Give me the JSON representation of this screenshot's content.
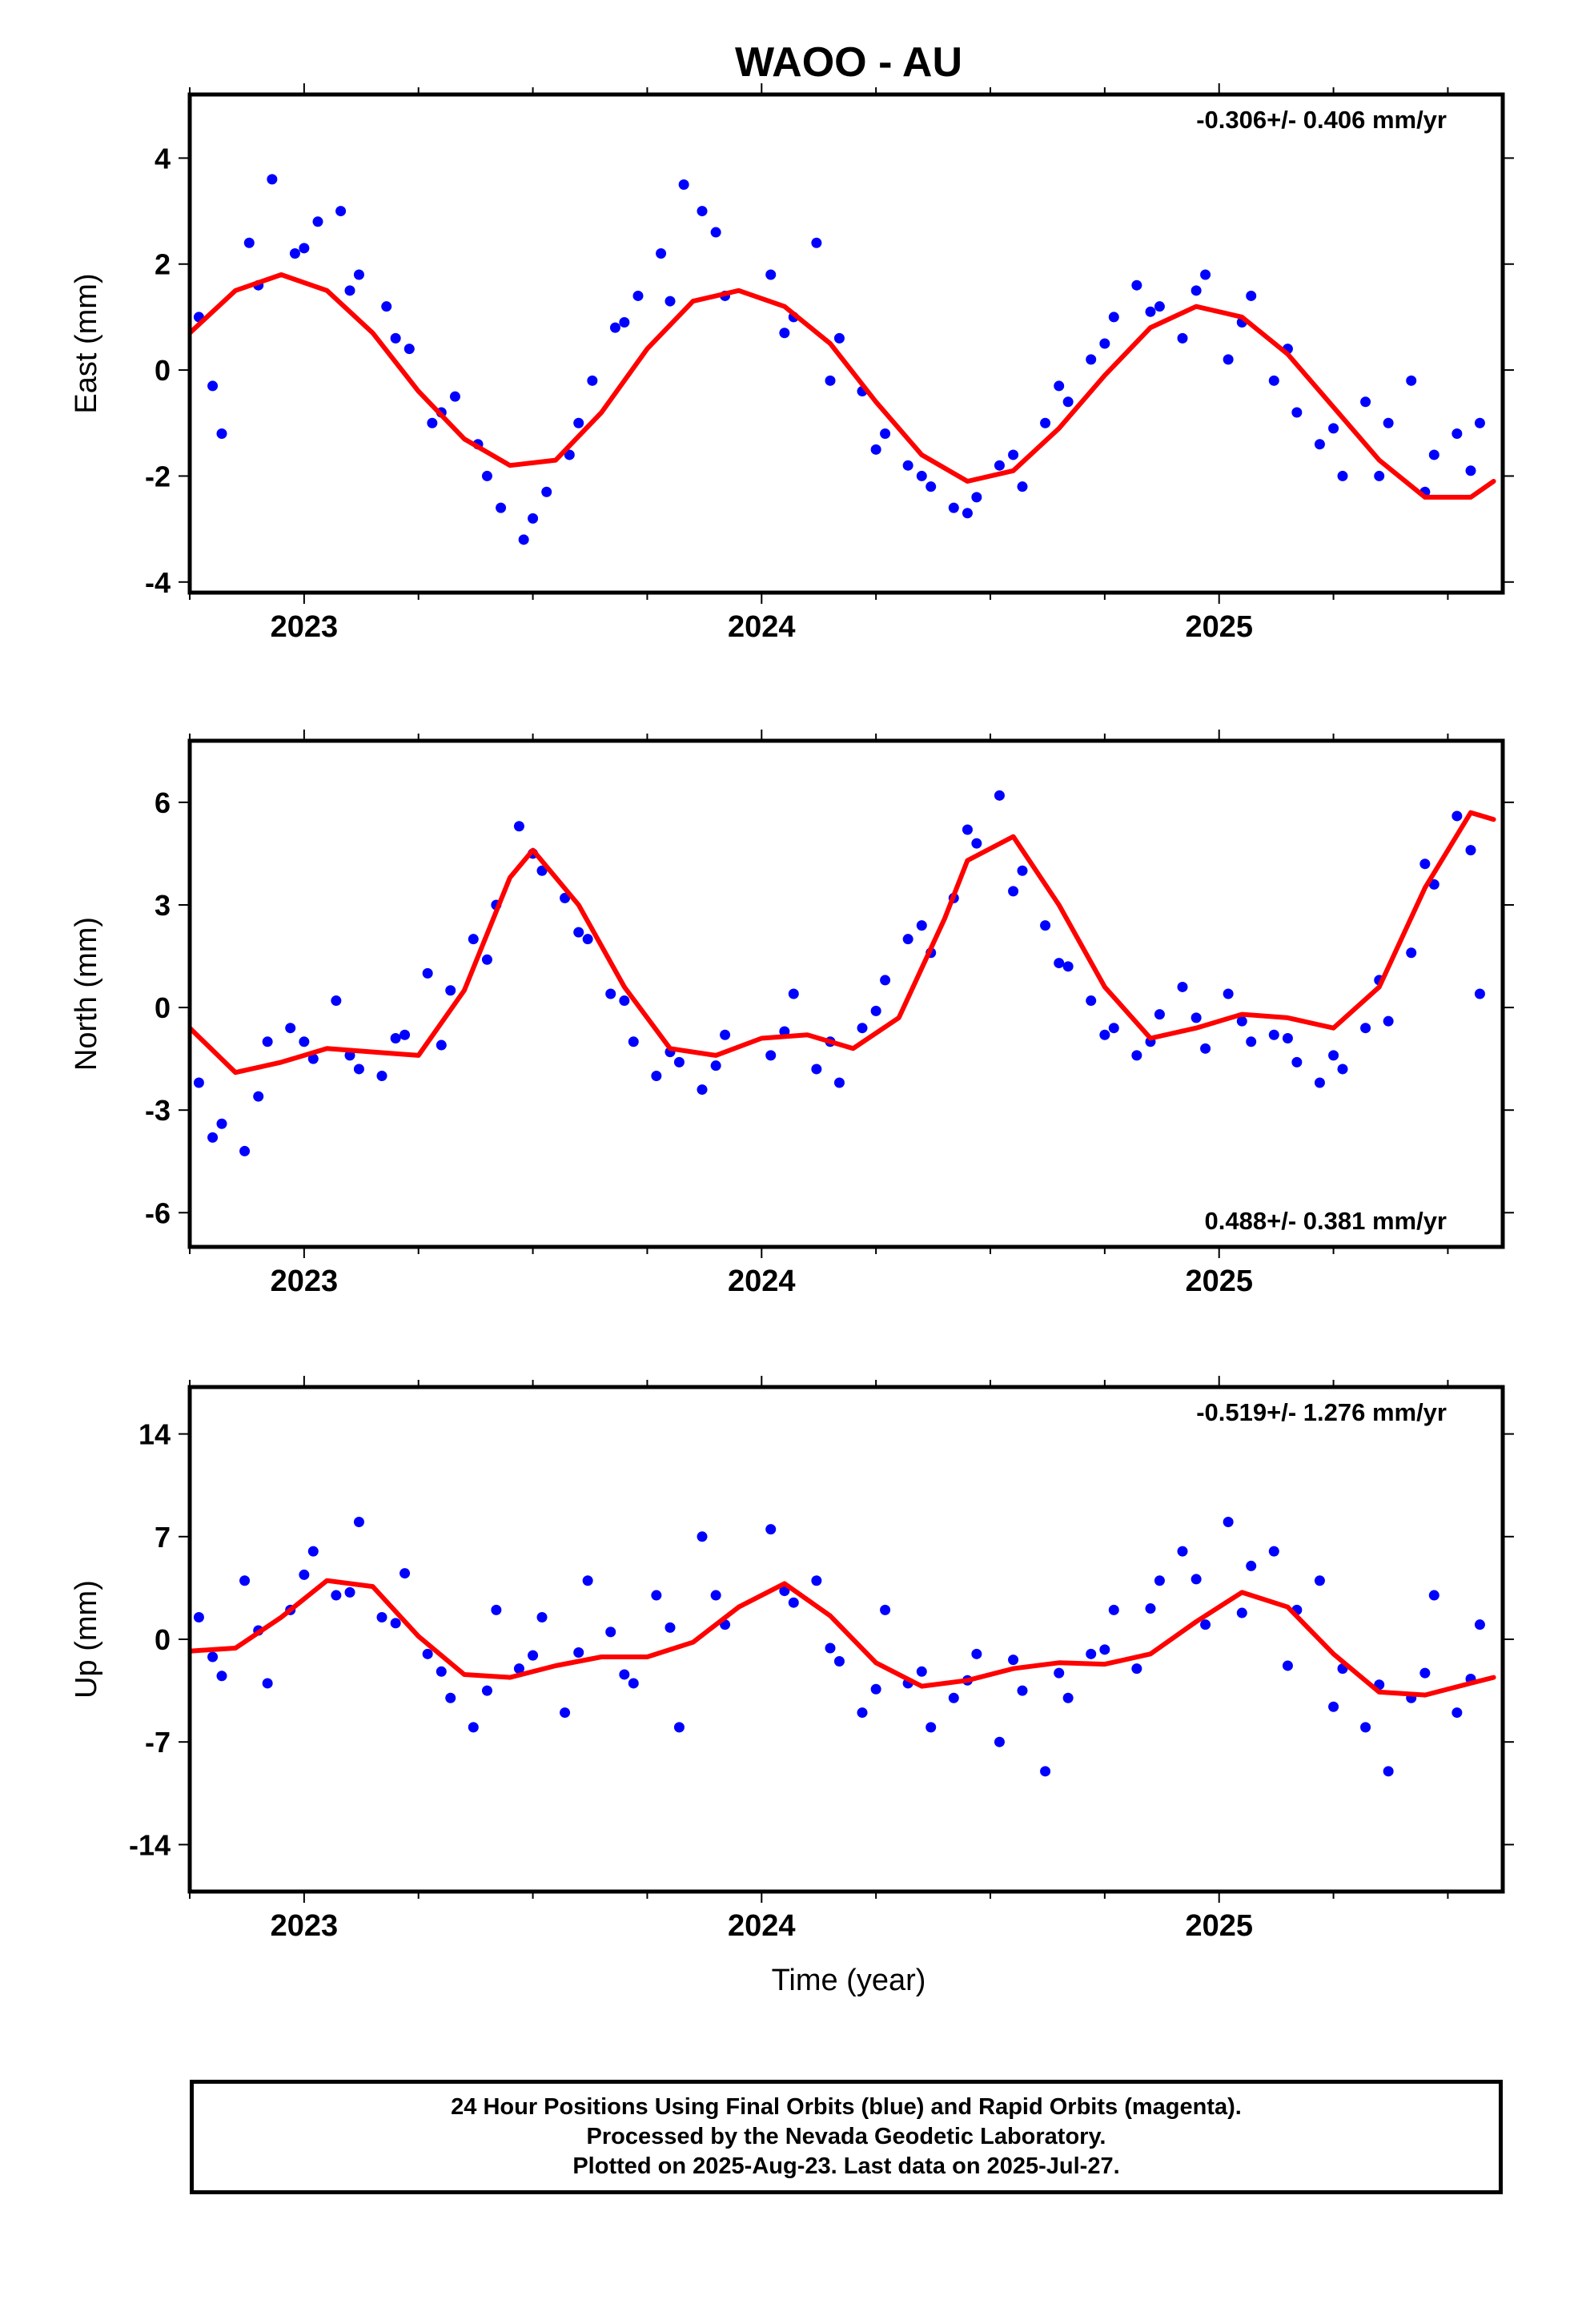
{
  "chart_data": {
    "type": "scatter",
    "title": "WAOO - AU",
    "xlabel": "Time (year)",
    "x_ticks": [
      "2023",
      "2024",
      "2025"
    ],
    "xlim": [
      2022.75,
      2025.62
    ],
    "colors": {
      "points": "#0000ff",
      "fit": "#ff0000",
      "frame": "#000000"
    },
    "panels": [
      {
        "ylabel": "East (mm)",
        "ylim": [
          -4.2,
          5.2
        ],
        "yticks": [
          "4",
          "2",
          "0",
          "-2",
          "-4"
        ],
        "ytick_values": [
          4,
          2,
          0,
          -2,
          -4
        ],
        "rate": "-0.306+/- 0.406 mm/yr",
        "rate_position": "top-right",
        "fit_curve": {
          "x": [
            2022.75,
            2022.85,
            2022.95,
            2023.05,
            2023.15,
            2023.25,
            2023.35,
            2023.45,
            2023.55,
            2023.65,
            2023.75,
            2023.85,
            2023.95,
            2024.05,
            2024.15,
            2024.25,
            2024.35,
            2024.45,
            2024.55,
            2024.65,
            2024.75,
            2024.85,
            2024.95,
            2025.05,
            2025.15,
            2025.25,
            2025.35,
            2025.45,
            2025.55,
            2025.6
          ],
          "y": [
            0.7,
            1.5,
            1.8,
            1.5,
            0.7,
            -0.4,
            -1.3,
            -1.8,
            -1.7,
            -0.8,
            0.4,
            1.3,
            1.5,
            1.2,
            0.5,
            -0.6,
            -1.6,
            -2.1,
            -1.9,
            -1.1,
            -0.1,
            0.8,
            1.2,
            1.0,
            0.3,
            -0.7,
            -1.7,
            -2.4,
            -2.4,
            -2.1
          ]
        },
        "points": {
          "x": [
            2022.77,
            2022.82,
            2022.88,
            2022.93,
            2022.98,
            2023.03,
            2023.08,
            2023.12,
            2023.18,
            2023.23,
            2023.28,
            2023.33,
            2023.38,
            2023.43,
            2023.48,
            2023.53,
            2023.58,
            2023.63,
            2023.68,
            2023.73,
            2023.78,
            2023.83,
            2023.87,
            2023.92,
            2024.02,
            2024.07,
            2024.12,
            2024.17,
            2024.22,
            2024.27,
            2024.32,
            2024.37,
            2024.42,
            2024.47,
            2024.52,
            2024.57,
            2024.62,
            2024.67,
            2024.72,
            2024.77,
            2024.82,
            2024.87,
            2024.92,
            2024.97,
            2025.02,
            2025.07,
            2025.12,
            2025.17,
            2025.22,
            2025.27,
            2025.32,
            2025.37,
            2025.42,
            2025.47,
            2025.52,
            2025.57,
            2022.8,
            2022.9,
            2023.0,
            2023.1,
            2023.2,
            2023.3,
            2023.4,
            2023.5,
            2023.6,
            2023.7,
            2023.8,
            2023.9,
            2024.05,
            2024.15,
            2024.25,
            2024.35,
            2024.45,
            2024.55,
            2024.65,
            2024.75,
            2024.85,
            2024.95,
            2025.05,
            2025.15,
            2025.25,
            2025.35,
            2025.45,
            2025.55
          ],
          "y": [
            1.0,
            -1.2,
            2.4,
            3.6,
            2.2,
            2.8,
            3.0,
            1.8,
            1.2,
            0.4,
            -1.0,
            -0.5,
            -1.4,
            -2.6,
            -3.2,
            -2.3,
            -1.6,
            -0.2,
            0.8,
            1.4,
            2.2,
            3.5,
            3.0,
            1.4,
            1.8,
            1.0,
            2.4,
            0.6,
            -0.4,
            -1.2,
            -1.8,
            -2.2,
            -2.6,
            -2.4,
            -1.8,
            -2.2,
            -1.0,
            -0.6,
            0.2,
            1.0,
            1.6,
            1.2,
            0.6,
            1.8,
            0.2,
            1.4,
            -0.2,
            -0.8,
            -1.4,
            -2.0,
            -0.6,
            -1.0,
            -0.2,
            -1.6,
            -1.2,
            -1.0,
            -0.3,
            1.6,
            2.3,
            1.5,
            0.6,
            -0.8,
            -2.0,
            -2.8,
            -1.0,
            0.9,
            1.3,
            2.6,
            0.7,
            -0.2,
            -1.5,
            -2.0,
            -2.7,
            -1.6,
            -0.3,
            0.5,
            1.1,
            1.5,
            0.9,
            0.4,
            -1.1,
            -2.0,
            -2.3,
            -1.9
          ]
        }
      },
      {
        "ylabel": "North (mm)",
        "ylim": [
          -7.0,
          7.8
        ],
        "yticks": [
          "6",
          "3",
          "0",
          "-3",
          "-6"
        ],
        "ytick_values": [
          6,
          3,
          0,
          -3,
          -6
        ],
        "rate": "0.488+/- 0.381 mm/yr",
        "rate_position": "bottom-right",
        "fit_curve": {
          "x": [
            2022.75,
            2022.85,
            2022.95,
            2023.05,
            2023.15,
            2023.25,
            2023.35,
            2023.45,
            2023.5,
            2023.6,
            2023.7,
            2023.8,
            2023.9,
            2024.0,
            2024.1,
            2024.2,
            2024.3,
            2024.4,
            2024.45,
            2024.55,
            2024.65,
            2024.75,
            2024.85,
            2024.95,
            2025.05,
            2025.15,
            2025.25,
            2025.35,
            2025.45,
            2025.55,
            2025.6
          ],
          "y": [
            -0.6,
            -1.9,
            -1.6,
            -1.2,
            -1.3,
            -1.4,
            0.5,
            3.8,
            4.6,
            3.0,
            0.6,
            -1.2,
            -1.4,
            -0.9,
            -0.8,
            -1.2,
            -0.3,
            2.6,
            4.3,
            5.0,
            3.0,
            0.6,
            -0.9,
            -0.6,
            -0.2,
            -0.3,
            -0.6,
            0.6,
            3.5,
            5.7,
            5.5
          ]
        },
        "points": {
          "x": [
            2022.77,
            2022.82,
            2022.87,
            2022.92,
            2022.97,
            2023.02,
            2023.07,
            2023.12,
            2023.17,
            2023.22,
            2023.27,
            2023.32,
            2023.37,
            2023.42,
            2023.47,
            2023.52,
            2023.57,
            2023.62,
            2023.67,
            2023.72,
            2023.77,
            2023.82,
            2023.87,
            2023.92,
            2024.02,
            2024.07,
            2024.12,
            2024.17,
            2024.22,
            2024.27,
            2024.32,
            2024.37,
            2024.42,
            2024.47,
            2024.52,
            2024.57,
            2024.62,
            2024.67,
            2024.72,
            2024.77,
            2024.82,
            2024.87,
            2024.92,
            2024.97,
            2025.02,
            2025.07,
            2025.12,
            2025.17,
            2025.22,
            2025.27,
            2025.32,
            2025.37,
            2025.42,
            2025.47,
            2025.52,
            2025.57,
            2022.8,
            2022.9,
            2023.0,
            2023.1,
            2023.2,
            2023.3,
            2023.4,
            2023.5,
            2023.6,
            2023.7,
            2023.8,
            2023.9,
            2024.05,
            2024.15,
            2024.25,
            2024.35,
            2024.45,
            2024.55,
            2024.65,
            2024.75,
            2024.85,
            2024.95,
            2025.05,
            2025.15,
            2025.25,
            2025.35,
            2025.45,
            2025.55
          ],
          "y": [
            -2.2,
            -3.4,
            -4.2,
            -1.0,
            -0.6,
            -1.5,
            0.2,
            -1.8,
            -2.0,
            -0.8,
            1.0,
            0.5,
            2.0,
            3.0,
            5.3,
            4.0,
            3.2,
            2.0,
            0.4,
            -1.0,
            -2.0,
            -1.6,
            -2.4,
            -0.8,
            -1.4,
            0.4,
            -1.8,
            -2.2,
            -0.6,
            0.8,
            2.0,
            1.6,
            3.2,
            4.8,
            6.2,
            4.0,
            2.4,
            1.2,
            0.2,
            -0.6,
            -1.4,
            -0.2,
            0.6,
            -1.2,
            0.4,
            -1.0,
            -0.8,
            -1.6,
            -2.2,
            -1.8,
            -0.6,
            -0.4,
            1.6,
            3.6,
            5.6,
            0.4,
            -3.8,
            -2.6,
            -1.0,
            -1.4,
            -0.9,
            -1.1,
            1.4,
            4.5,
            2.2,
            0.2,
            -1.3,
            -1.7,
            -0.7,
            -1.0,
            -0.1,
            2.4,
            5.2,
            3.4,
            1.3,
            -0.8,
            -1.0,
            -0.3,
            -0.4,
            -0.9,
            -1.4,
            0.8,
            4.2,
            4.6
          ]
        }
      },
      {
        "ylabel": "Up (mm)",
        "ylim": [
          -17.2,
          17.2
        ],
        "yticks": [
          "14",
          "7",
          "0",
          "-7",
          "-14"
        ],
        "ytick_values": [
          14,
          7,
          0,
          -7,
          -14
        ],
        "rate": "-0.519+/- 1.276 mm/yr",
        "rate_position": "top-right",
        "fit_curve": {
          "x": [
            2022.75,
            2022.85,
            2022.95,
            2023.05,
            2023.15,
            2023.25,
            2023.35,
            2023.45,
            2023.55,
            2023.65,
            2023.75,
            2023.85,
            2023.95,
            2024.05,
            2024.15,
            2024.25,
            2024.35,
            2024.45,
            2024.55,
            2024.65,
            2024.75,
            2024.85,
            2024.95,
            2025.05,
            2025.15,
            2025.25,
            2025.35,
            2025.45,
            2025.55,
            2025.6
          ],
          "y": [
            -0.8,
            -0.6,
            1.5,
            4.0,
            3.6,
            0.2,
            -2.4,
            -2.6,
            -1.8,
            -1.2,
            -1.2,
            -0.2,
            2.2,
            3.8,
            1.6,
            -1.6,
            -3.2,
            -2.8,
            -2.0,
            -1.6,
            -1.7,
            -1.0,
            1.2,
            3.2,
            2.2,
            -1.0,
            -3.6,
            -3.8,
            -3.0,
            -2.6
          ]
        },
        "points": {
          "x": [
            2022.77,
            2022.82,
            2022.87,
            2022.92,
            2022.97,
            2023.02,
            2023.07,
            2023.12,
            2023.17,
            2023.22,
            2023.27,
            2023.32,
            2023.37,
            2023.42,
            2023.47,
            2023.52,
            2023.57,
            2023.62,
            2023.67,
            2023.72,
            2023.77,
            2023.82,
            2023.87,
            2023.92,
            2024.02,
            2024.07,
            2024.12,
            2024.17,
            2024.22,
            2024.27,
            2024.32,
            2024.37,
            2024.42,
            2024.47,
            2024.52,
            2024.57,
            2024.62,
            2024.67,
            2024.72,
            2024.77,
            2024.82,
            2024.87,
            2024.92,
            2024.97,
            2025.02,
            2025.07,
            2025.12,
            2025.17,
            2025.22,
            2025.27,
            2025.32,
            2025.37,
            2025.42,
            2025.47,
            2025.52,
            2025.57,
            2022.8,
            2022.9,
            2023.0,
            2023.1,
            2023.2,
            2023.3,
            2023.4,
            2023.5,
            2023.6,
            2023.7,
            2023.8,
            2023.9,
            2024.05,
            2024.15,
            2024.25,
            2024.35,
            2024.45,
            2024.55,
            2024.65,
            2024.75,
            2024.85,
            2024.95,
            2025.05,
            2025.15,
            2025.25,
            2025.35,
            2025.45,
            2025.55
          ],
          "y": [
            1.5,
            -2.5,
            4.0,
            -3.0,
            2.0,
            6.0,
            3.0,
            8.0,
            1.5,
            4.5,
            -1.0,
            -4.0,
            -6.0,
            2.0,
            -2.0,
            1.5,
            -5.0,
            4.0,
            0.5,
            -3.0,
            3.0,
            -6.0,
            7.0,
            1.0,
            7.5,
            2.5,
            4.0,
            -1.5,
            -5.0,
            2.0,
            -3.0,
            -6.0,
            -4.0,
            -1.0,
            -7.0,
            -3.5,
            -9.0,
            -4.0,
            -1.0,
            2.0,
            -2.0,
            4.0,
            6.0,
            1.0,
            8.0,
            5.0,
            6.0,
            2.0,
            4.0,
            -2.0,
            -6.0,
            -9.0,
            -4.0,
            3.0,
            -5.0,
            1.0,
            -1.2,
            0.6,
            4.4,
            3.2,
            1.1,
            -2.2,
            -3.5,
            -1.1,
            -0.9,
            -2.4,
            0.8,
            3.0,
            3.3,
            -0.6,
            -3.4,
            -2.2,
            -2.8,
            -1.4,
            -2.3,
            -0.7,
            2.1,
            4.1,
            1.8,
            -1.8,
            -4.6,
            -3.1,
            -2.3,
            -2.7
          ]
        }
      }
    ],
    "footer": [
      "24 Hour Positions Using Final Orbits (blue) and Rapid Orbits (magenta).",
      "Processed by the Nevada Geodetic Laboratory.",
      "Plotted on 2025-Aug-23. Last data on 2025-Jul-27."
    ]
  }
}
